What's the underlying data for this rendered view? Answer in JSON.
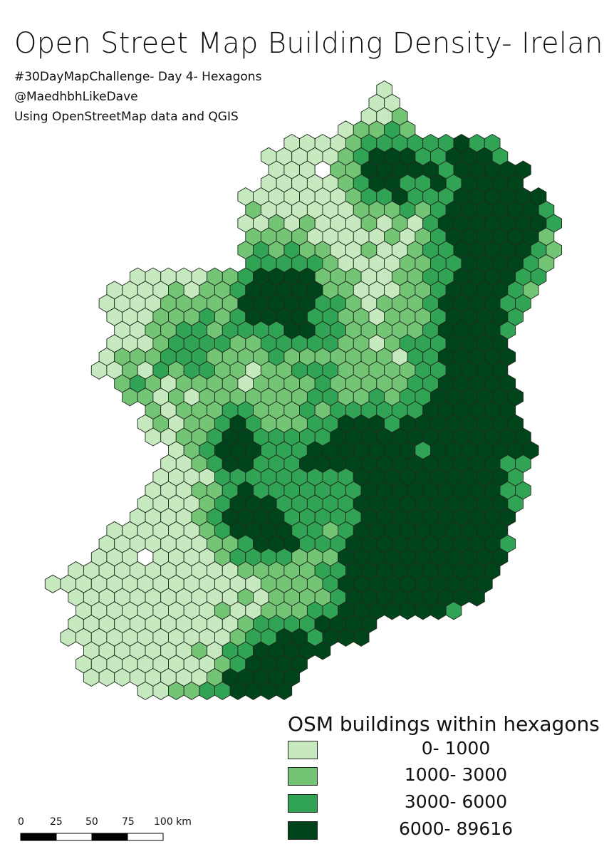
{
  "title": "Open Street Map Building Density- Ireland",
  "subtitle_lines": [
    "#30DayMapChallenge- Day 4- Hexagons",
    "@MaedhbhLikeDave",
    "Using OpenStreetMap data and QGIS"
  ],
  "legend": {
    "title": "OSM buildings within hexagons",
    "classes": [
      {
        "label": "0- 1000",
        "color": "#c7e9c0"
      },
      {
        "label": "1000- 3000",
        "color": "#74c476"
      },
      {
        "label": "3000- 6000",
        "color": "#31a354"
      },
      {
        "label": "6000- 89616",
        "color": "#00441b"
      }
    ]
  },
  "scale_bar": {
    "labels": [
      "0",
      "25",
      "50",
      "75",
      "100 km"
    ]
  },
  "colors": {
    "hex_stroke": "#1f2a1f",
    "water_gap": "#ffffff"
  }
}
